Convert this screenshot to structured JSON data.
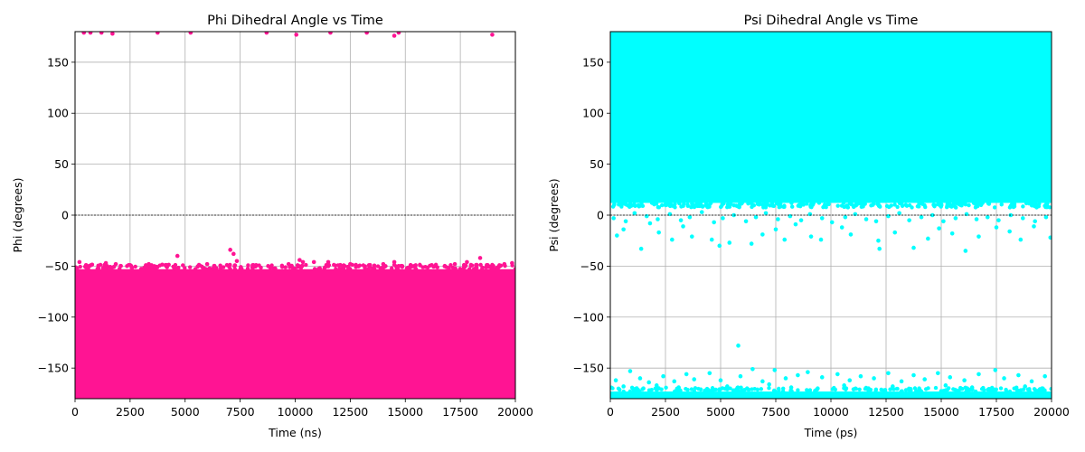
{
  "chart_data": [
    {
      "type": "scatter",
      "title": "Phi Dihedral Angle vs Time",
      "xlabel": "Time (ns)",
      "ylabel": "Phi (degrees)",
      "xlim": [
        0,
        20000
      ],
      "ylim": [
        -180,
        180
      ],
      "xticks": [
        0,
        2500,
        5000,
        7500,
        10000,
        12500,
        15000,
        17500,
        20000
      ],
      "yticks": [
        -150,
        -100,
        -50,
        0,
        50,
        100,
        150
      ],
      "xtick_labels": [
        "0",
        "2500",
        "5000",
        "7500",
        "10000",
        "12500",
        "15000",
        "17500",
        "20000"
      ],
      "ytick_labels": [
        "−150",
        "−100",
        "−50",
        "0",
        "50",
        "100",
        "150"
      ],
      "grid": true,
      "zero_line": true,
      "color": "#ff1493",
      "series": [
        {
          "dense_band": {
            "y_min": -180,
            "y_max": -53
          },
          "points": [
            [
              400,
              179
            ],
            [
              700,
              179
            ],
            [
              1200,
              179
            ],
            [
              1700,
              178
            ],
            [
              3750,
              179
            ],
            [
              5250,
              179
            ],
            [
              8700,
              179
            ],
            [
              10050,
              177
            ],
            [
              11600,
              179
            ],
            [
              13250,
              179
            ],
            [
              14500,
              176
            ],
            [
              14700,
              179
            ],
            [
              18950,
              177
            ],
            [
              200,
              -46
            ],
            [
              500,
              -49
            ],
            [
              1400,
              -47
            ],
            [
              1850,
              -48
            ],
            [
              2500,
              -49
            ],
            [
              3350,
              -48
            ],
            [
              4650,
              -40
            ],
            [
              6000,
              -48
            ],
            [
              6900,
              -49
            ],
            [
              7050,
              -34
            ],
            [
              7200,
              -38
            ],
            [
              7350,
              -45
            ],
            [
              8100,
              -49
            ],
            [
              9700,
              -48
            ],
            [
              10200,
              -44
            ],
            [
              10350,
              -46
            ],
            [
              10850,
              -46
            ],
            [
              11500,
              -46
            ],
            [
              12500,
              -48
            ],
            [
              13400,
              -49
            ],
            [
              14000,
              -48
            ],
            [
              14500,
              -46
            ],
            [
              16200,
              -49
            ],
            [
              17250,
              -48
            ],
            [
              17800,
              -46
            ],
            [
              18400,
              -42
            ],
            [
              18700,
              -49
            ],
            [
              19500,
              -48
            ],
            [
              19850,
              -47
            ],
            [
              300,
              -179
            ],
            [
              1100,
              -178
            ],
            [
              2600,
              -179
            ],
            [
              4100,
              -178
            ],
            [
              6200,
              -179
            ],
            [
              8700,
              -178
            ],
            [
              11000,
              -179
            ],
            [
              13600,
              -178
            ],
            [
              15800,
              -179
            ],
            [
              17400,
              -178
            ],
            [
              19800,
              -179
            ]
          ]
        }
      ]
    },
    {
      "type": "scatter",
      "title": "Psi Dihedral Angle vs Time",
      "xlabel": "Time (ps)",
      "ylabel": "Psi (degrees)",
      "xlim": [
        0,
        20000
      ],
      "ylim": [
        -180,
        180
      ],
      "xticks": [
        0,
        2500,
        5000,
        7500,
        10000,
        12500,
        15000,
        17500,
        20000
      ],
      "yticks": [
        -150,
        -100,
        -50,
        0,
        50,
        100,
        150
      ],
      "xtick_labels": [
        "0",
        "2500",
        "5000",
        "7500",
        "10000",
        "12500",
        "15000",
        "17500",
        "20000"
      ],
      "ytick_labels": [
        "−150",
        "−100",
        "−50",
        "0",
        "50",
        "100",
        "150"
      ],
      "grid": true,
      "zero_line": true,
      "color": "#00ffff",
      "series": [
        {
          "dense_band": {
            "y_min": 12,
            "y_max": 180
          },
          "lower_band": {
            "y_min": -180,
            "y_max": -173
          },
          "points": [
            [
              5800,
              -128
            ],
            [
              300,
              -20
            ],
            [
              600,
              -14
            ],
            [
              1400,
              -33
            ],
            [
              1800,
              -8
            ],
            [
              2200,
              -17
            ],
            [
              2800,
              -24
            ],
            [
              3300,
              -11
            ],
            [
              3700,
              -21
            ],
            [
              4600,
              -24
            ],
            [
              4950,
              -30
            ],
            [
              5400,
              -27
            ],
            [
              6400,
              -28
            ],
            [
              6900,
              -19
            ],
            [
              7500,
              -14
            ],
            [
              7900,
              -24
            ],
            [
              8400,
              -9
            ],
            [
              9100,
              -21
            ],
            [
              9550,
              -24
            ],
            [
              10500,
              -12
            ],
            [
              10900,
              -19
            ],
            [
              12150,
              -25
            ],
            [
              12200,
              -33
            ],
            [
              12900,
              -17
            ],
            [
              13750,
              -32
            ],
            [
              14400,
              -23
            ],
            [
              14900,
              -13
            ],
            [
              15500,
              -18
            ],
            [
              16100,
              -35
            ],
            [
              16700,
              -21
            ],
            [
              17500,
              -12
            ],
            [
              18100,
              -16
            ],
            [
              18600,
              -24
            ],
            [
              19200,
              -11
            ],
            [
              19950,
              -22
            ],
            [
              150,
              -3
            ],
            [
              700,
              -6
            ],
            [
              1100,
              2
            ],
            [
              1650,
              -1
            ],
            [
              2150,
              -4
            ],
            [
              2700,
              1
            ],
            [
              3200,
              -5
            ],
            [
              3600,
              -2
            ],
            [
              4150,
              3
            ],
            [
              4700,
              -7
            ],
            [
              5100,
              -3
            ],
            [
              5600,
              0
            ],
            [
              6150,
              -6
            ],
            [
              6600,
              -2
            ],
            [
              7050,
              2
            ],
            [
              7600,
              -4
            ],
            [
              8150,
              -1
            ],
            [
              8650,
              -5
            ],
            [
              9050,
              1
            ],
            [
              9600,
              -3
            ],
            [
              10050,
              -7
            ],
            [
              10650,
              -2
            ],
            [
              11100,
              1
            ],
            [
              11600,
              -4
            ],
            [
              12050,
              -6
            ],
            [
              12600,
              -1
            ],
            [
              13100,
              2
            ],
            [
              13550,
              -5
            ],
            [
              14100,
              -2
            ],
            [
              14600,
              0
            ],
            [
              15100,
              -6
            ],
            [
              15650,
              -3
            ],
            [
              16150,
              1
            ],
            [
              16600,
              -4
            ],
            [
              17100,
              -2
            ],
            [
              17600,
              -5
            ],
            [
              18150,
              0
            ],
            [
              18700,
              -3
            ],
            [
              19250,
              -6
            ],
            [
              19750,
              -2
            ],
            [
              1900,
              102
            ],
            [
              3600,
              97
            ],
            [
              4400,
              120
            ],
            [
              9150,
              101
            ],
            [
              9950,
              104
            ],
            [
              11450,
              100
            ],
            [
              17650,
              103
            ],
            [
              250,
              -162
            ],
            [
              900,
              -153
            ],
            [
              1350,
              -160
            ],
            [
              1750,
              -164
            ],
            [
              2400,
              -158
            ],
            [
              2900,
              -163
            ],
            [
              3450,
              -156
            ],
            [
              3800,
              -161
            ],
            [
              4500,
              -155
            ],
            [
              5000,
              -162
            ],
            [
              5900,
              -158
            ],
            [
              6450,
              -151
            ],
            [
              6900,
              -163
            ],
            [
              7450,
              -152
            ],
            [
              7950,
              -160
            ],
            [
              8500,
              -157
            ],
            [
              8950,
              -154
            ],
            [
              9600,
              -159
            ],
            [
              10300,
              -156
            ],
            [
              10850,
              -162
            ],
            [
              11350,
              -158
            ],
            [
              11950,
              -160
            ],
            [
              12600,
              -155
            ],
            [
              13200,
              -163
            ],
            [
              13750,
              -157
            ],
            [
              14250,
              -161
            ],
            [
              14850,
              -155
            ],
            [
              15400,
              -159
            ],
            [
              16050,
              -162
            ],
            [
              16700,
              -156
            ],
            [
              17450,
              -152
            ],
            [
              17850,
              -160
            ],
            [
              18500,
              -157
            ],
            [
              19100,
              -163
            ],
            [
              19700,
              -158
            ],
            [
              600,
              -168
            ],
            [
              1500,
              -170
            ],
            [
              2100,
              -167
            ],
            [
              3100,
              -169
            ],
            [
              4100,
              -171
            ],
            [
              5300,
              -168
            ],
            [
              6200,
              -170
            ],
            [
              7200,
              -166
            ],
            [
              8200,
              -169
            ],
            [
              9400,
              -170
            ],
            [
              10600,
              -167
            ],
            [
              11700,
              -171
            ],
            [
              12800,
              -168
            ],
            [
              14000,
              -170
            ],
            [
              15200,
              -167
            ],
            [
              16400,
              -169
            ],
            [
              17300,
              -171
            ],
            [
              18800,
              -168
            ],
            [
              19600,
              -170
            ]
          ]
        }
      ]
    }
  ]
}
